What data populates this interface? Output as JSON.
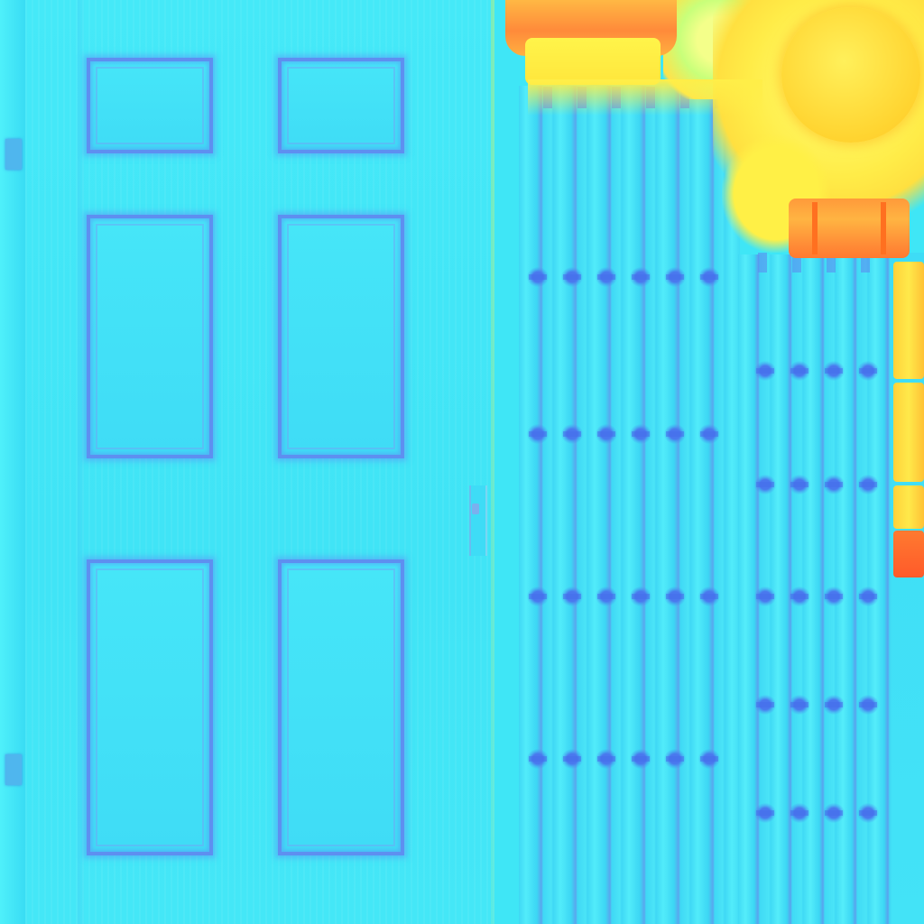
{
  "texture": {
    "door": {
      "panel_count": 6,
      "hinge_count": 2,
      "colors": {
        "face": "#40e4f6",
        "panel_border": "#5e8ff0",
        "hinge": "#4fb6ee"
      }
    },
    "fence": {
      "colors": {
        "plank": "#3fd8f5",
        "plank_light": "#52ecfa",
        "bolt": "#4a78ee"
      }
    },
    "decor": {
      "colors": {
        "sun": "#ffd430",
        "pot": "#ff8a3a",
        "yellow": "#fff046",
        "orange": "#ff7a30"
      }
    }
  }
}
